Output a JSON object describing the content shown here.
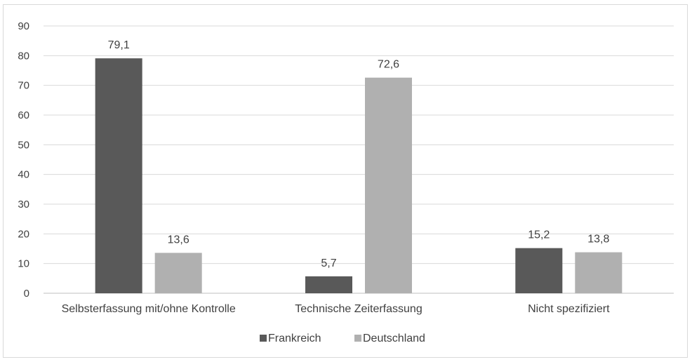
{
  "chart_data": {
    "type": "bar",
    "categories": [
      "Selbsterfassung mit/ohne Kontrolle",
      "Technische Zeiterfassung",
      "Nicht spezifiziert"
    ],
    "series": [
      {
        "name": "Frankreich",
        "values": [
          79.1,
          5.7,
          15.2
        ],
        "labels": [
          "79,1",
          "5,7",
          "15,2"
        ],
        "color": "#595959"
      },
      {
        "name": "Deutschland",
        "values": [
          13.6,
          72.6,
          13.8
        ],
        "labels": [
          "13,6",
          "72,6",
          "13,8"
        ],
        "color": "#b0b0b0"
      }
    ],
    "ylim": [
      0,
      90
    ],
    "yticks": [
      0,
      10,
      20,
      30,
      40,
      50,
      60,
      70,
      80,
      90
    ],
    "grid": true,
    "legend": "bottom"
  }
}
